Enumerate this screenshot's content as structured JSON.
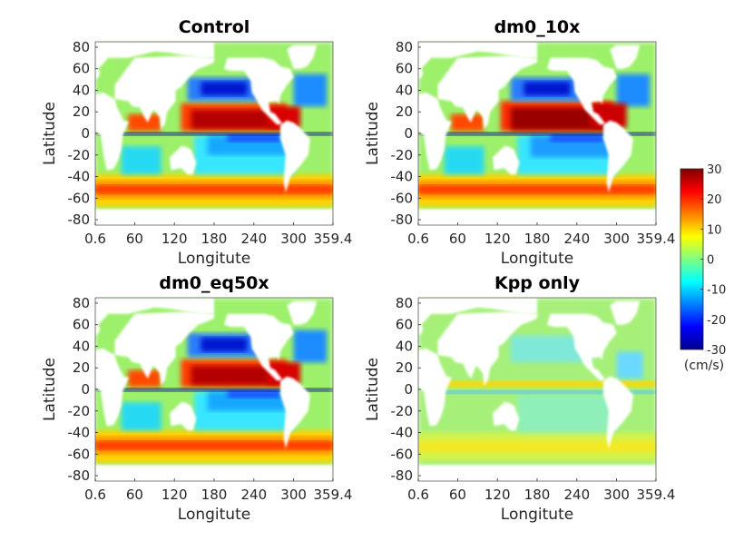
{
  "chart_data": {
    "type": "heatmap",
    "panels": [
      {
        "title": "Control",
        "variant": "strong"
      },
      {
        "title": "dm0_10x",
        "variant": "stronger"
      },
      {
        "title": "dm0_eq50x",
        "variant": "strong"
      },
      {
        "title": "Kpp only",
        "variant": "weak"
      }
    ],
    "xlabel": "Longitute",
    "ylabel": "Latitude",
    "xticks": [
      "0.6",
      "60",
      "120",
      "180",
      "240",
      "300",
      "359.4"
    ],
    "xtick_values": [
      0.6,
      60,
      120,
      180,
      240,
      300,
      359.4
    ],
    "xlim": [
      0.6,
      359.4
    ],
    "yticks": [
      "80",
      "60",
      "40",
      "20",
      "0",
      "-20",
      "-40",
      "-60",
      "-80"
    ],
    "ytick_values": [
      80,
      60,
      40,
      20,
      0,
      -20,
      -40,
      -60,
      -80
    ],
    "ylim": [
      -85,
      85
    ],
    "colorbar": {
      "ticks": [
        "30",
        "20",
        "10",
        "0",
        "-10",
        "-20",
        "-30"
      ],
      "tick_values": [
        30,
        20,
        10,
        0,
        -10,
        -20,
        -30
      ],
      "range": [
        -30,
        30
      ],
      "unit": "(cm/s)",
      "colormap": "jet"
    },
    "land_color": "#ffffff"
  }
}
